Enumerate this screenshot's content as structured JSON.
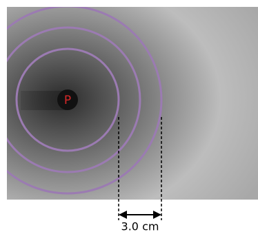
{
  "diagram": {
    "source_label": "P",
    "distance_label": "3.0 cm"
  }
}
